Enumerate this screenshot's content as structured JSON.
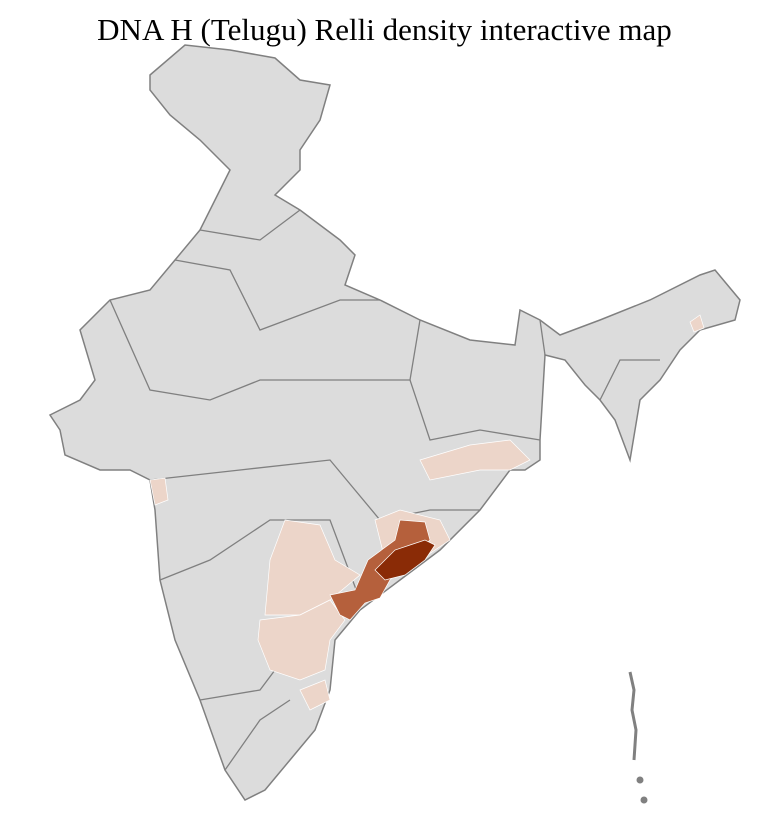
{
  "title": "DNA H (Telugu) Relli density interactive map",
  "colors": {
    "no_data": "#dcdcdc",
    "district_border": "#ffffff",
    "state_border": "#808080",
    "low": "#ecd5c9",
    "medium": "#b5603c",
    "high": "#8a2b06"
  },
  "map": {
    "region": "India",
    "density_levels": [
      "none",
      "low",
      "medium",
      "high"
    ],
    "highlighted_areas": [
      {
        "area": "coastal Andhra Pradesh (Srikakulam–Vizianagaram–Visakhapatnam)",
        "level": "high"
      },
      {
        "area": "coastal Andhra Pradesh (Godavari–Krishna)",
        "level": "medium"
      },
      {
        "area": "Telangana, Rayalaseema, southern Odisha, West Bengal",
        "level": "low"
      }
    ]
  }
}
